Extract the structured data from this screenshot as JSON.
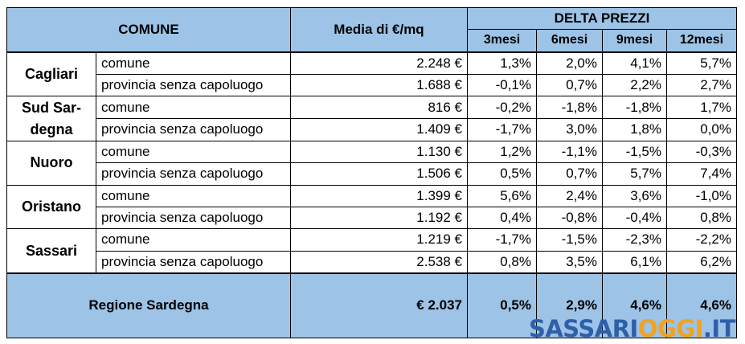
{
  "table": {
    "header": {
      "comune": "COMUNE",
      "media": "Media di €/mq",
      "delta": "DELTA PREZZI",
      "periods": [
        "3mesi",
        "6mesi",
        "9mesi",
        "12mesi"
      ]
    },
    "groups": [
      {
        "city": "Cagliari",
        "rows": [
          {
            "type": "comune",
            "media": "2.248 €",
            "d3": "1,3%",
            "d6": "2,0%",
            "d9": "4,1%",
            "d12": "5,7%"
          },
          {
            "type": "provincia senza capoluogo",
            "media": "1.688 €",
            "d3": "-0,1%",
            "d6": "0,7%",
            "d9": "2,2%",
            "d12": "2,7%"
          }
        ]
      },
      {
        "city": "Sud Sar-degna",
        "rows": [
          {
            "type": "comune",
            "media": "816 €",
            "d3": "-0,2%",
            "d6": "-1,8%",
            "d9": "-1,8%",
            "d12": "1,7%"
          },
          {
            "type": "provincia senza capoluogo",
            "media": "1.409 €",
            "d3": "-1,7%",
            "d6": "3,0%",
            "d9": "1,8%",
            "d12": "0,0%"
          }
        ]
      },
      {
        "city": "Nuoro",
        "rows": [
          {
            "type": "comune",
            "media": "1.130 €",
            "d3": "1,2%",
            "d6": "-1,1%",
            "d9": "-1,5%",
            "d12": "-0,3%"
          },
          {
            "type": "provincia senza capoluogo",
            "media": "1.506 €",
            "d3": "0,5%",
            "d6": "0,7%",
            "d9": "5,7%",
            "d12": "7,4%"
          }
        ]
      },
      {
        "city": "Oristano",
        "rows": [
          {
            "type": "comune",
            "media": "1.399 €",
            "d3": "5,6%",
            "d6": "2,4%",
            "d9": "3,6%",
            "d12": "-1,0%"
          },
          {
            "type": "provincia senza capoluogo",
            "media": "1.192 €",
            "d3": "0,4%",
            "d6": "-0,8%",
            "d9": "-0,4%",
            "d12": "0,8%"
          }
        ]
      },
      {
        "city": "Sassari",
        "rows": [
          {
            "type": "comune",
            "media": "1.219 €",
            "d3": "-1,7%",
            "d6": "-1,5%",
            "d9": "-2,3%",
            "d12": "-2,2%"
          },
          {
            "type": "provincia senza capoluogo",
            "media": "2.538 €",
            "d3": "0,8%",
            "d6": "3,5%",
            "d9": "6,1%",
            "d12": "6,2%"
          }
        ]
      }
    ],
    "footer": {
      "label": "Regione Sardegna",
      "media": "€ 2.037",
      "d3": "0,5%",
      "d6": "2,9%",
      "d9": "4,6%",
      "d12": "4,6%"
    }
  },
  "watermark": {
    "part1": "SASSARI",
    "part2": "OGGI",
    "part3": ".IT",
    "colors": {
      "blue": "#2f5fa8",
      "orange": "#f3a21c"
    }
  }
}
